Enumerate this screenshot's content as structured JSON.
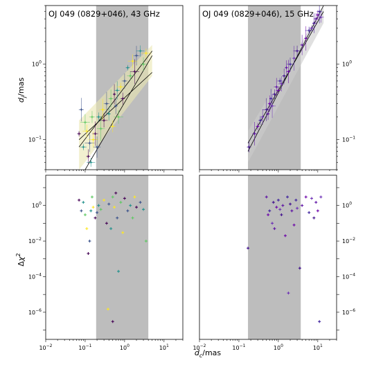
{
  "figure": {
    "xlabel": "d_c/mas",
    "ylabel_top": "d_j/mas",
    "ylabel_bottom": "Δχ²"
  },
  "chart_data": [
    {
      "type": "scatter",
      "panel": "top-left",
      "title": "OJ 049 (0829+046), 43 GHz",
      "xscale": "log",
      "yscale": "log",
      "xlim": [
        0.01,
        30
      ],
      "ylim": [
        0.04,
        6
      ],
      "shade_x": [
        0.19,
        4.0
      ],
      "yticks": [
        "10^-1",
        "10^0"
      ],
      "colormap": "viridis",
      "fit_lines": [
        {
          "x": [
            0.07,
            5
          ],
          "y": [
            0.08,
            1.5
          ]
        },
        {
          "x": [
            0.07,
            5
          ],
          "y": [
            0.1,
            0.78
          ]
        },
        {
          "x": [
            0.1,
            5
          ],
          "y": [
            0.04,
            1.3
          ]
        }
      ],
      "band": {
        "x": [
          0.07,
          5
        ],
        "ylow": [
          0.03,
          0.7
        ],
        "yhigh": [
          0.18,
          1.8
        ]
      },
      "series": [
        {
          "points": [
            [
              0.07,
              0.12
            ],
            [
              0.08,
              0.25
            ],
            [
              0.09,
              0.08
            ],
            [
              0.1,
              0.17
            ],
            [
              0.11,
              0.13
            ],
            [
              0.12,
              0.06
            ],
            [
              0.13,
              0.09
            ],
            [
              0.14,
              0.05
            ],
            [
              0.15,
              0.2
            ],
            [
              0.16,
              0.1
            ],
            [
              0.18,
              0.12
            ],
            [
              0.2,
              0.08
            ],
            [
              0.22,
              0.2
            ],
            [
              0.25,
              0.14
            ],
            [
              0.28,
              0.25
            ],
            [
              0.3,
              0.18
            ],
            [
              0.35,
              0.3
            ],
            [
              0.4,
              0.22
            ],
            [
              0.45,
              0.35
            ],
            [
              0.5,
              0.15
            ],
            [
              0.55,
              0.4
            ],
            [
              0.6,
              0.28
            ],
            [
              0.65,
              0.45
            ],
            [
              0.7,
              0.2
            ],
            [
              0.8,
              0.5
            ],
            [
              0.9,
              0.35
            ],
            [
              1.0,
              0.6
            ],
            [
              1.2,
              0.9
            ],
            [
              1.4,
              0.7
            ],
            [
              1.6,
              1.1
            ],
            [
              1.8,
              0.8
            ],
            [
              2.0,
              1.3
            ],
            [
              2.5,
              1.5
            ],
            [
              3.0,
              1.0
            ],
            [
              3.5,
              1.4
            ]
          ]
        }
      ]
    },
    {
      "type": "scatter",
      "panel": "top-right",
      "title": "OJ 049 (0829+046), 15 GHz",
      "xscale": "log",
      "yscale": "log",
      "xlim": [
        0.01,
        30
      ],
      "ylim": [
        0.04,
        6
      ],
      "shade_x": [
        0.17,
        3.7
      ],
      "yticks": [
        "10^-1",
        "10^0"
      ],
      "colormap": "plasma",
      "fit_lines": [
        {
          "x": [
            0.17,
            14
          ],
          "y": [
            0.07,
            6.5
          ]
        },
        {
          "x": [
            0.17,
            14
          ],
          "y": [
            0.09,
            5.0
          ]
        }
      ],
      "band": {
        "x": [
          0.17,
          14
        ],
        "ylow": [
          0.05,
          3.5
        ],
        "yhigh": [
          0.13,
          7.0
        ]
      },
      "series": [
        {
          "points": [
            [
              0.18,
              0.08
            ],
            [
              0.25,
              0.12
            ],
            [
              0.3,
              0.15
            ],
            [
              0.35,
              0.18
            ],
            [
              0.4,
              0.2
            ],
            [
              0.5,
              0.25
            ],
            [
              0.55,
              0.22
            ],
            [
              0.6,
              0.3
            ],
            [
              0.65,
              0.35
            ],
            [
              0.7,
              0.28
            ],
            [
              0.8,
              0.4
            ],
            [
              0.9,
              0.5
            ],
            [
              1.0,
              0.45
            ],
            [
              1.1,
              0.6
            ],
            [
              1.2,
              0.55
            ],
            [
              1.4,
              0.7
            ],
            [
              1.6,
              0.9
            ],
            [
              1.8,
              0.8
            ],
            [
              2.0,
              1.0
            ],
            [
              2.5,
              1.2
            ],
            [
              3.0,
              1.5
            ],
            [
              4.0,
              1.8
            ],
            [
              5.0,
              2.2
            ],
            [
              6.0,
              2.8
            ],
            [
              7.0,
              3.0
            ],
            [
              8.0,
              3.5
            ],
            [
              9.0,
              4.0
            ],
            [
              10.0,
              4.5
            ],
            [
              11.0,
              5.0
            ],
            [
              12.0,
              4.2
            ]
          ]
        }
      ]
    },
    {
      "type": "scatter",
      "panel": "bottom-left",
      "xscale": "log",
      "yscale": "log",
      "xlim": [
        0.01,
        30
      ],
      "ylim": [
        3e-08,
        50
      ],
      "shade_x": [
        0.19,
        4.0
      ],
      "xticks": [
        "10^-2",
        "10^-1",
        "10^0",
        "10^1"
      ],
      "yticks": [
        "10^-6",
        "10^-4",
        "10^-2",
        "10^0"
      ],
      "colormap": "viridis",
      "series": [
        {
          "points": [
            [
              0.07,
              2.0
            ],
            [
              0.08,
              0.5
            ],
            [
              0.09,
              1.5
            ],
            [
              0.1,
              0.3
            ],
            [
              0.11,
              0.05
            ],
            [
              0.12,
              0.002
            ],
            [
              0.13,
              0.01
            ],
            [
              0.14,
              0.5
            ],
            [
              0.15,
              3.0
            ],
            [
              0.16,
              0.8
            ],
            [
              0.18,
              0.2
            ],
            [
              0.2,
              0.4
            ],
            [
              0.22,
              1.0
            ],
            [
              0.25,
              0.6
            ],
            [
              0.3,
              2.0
            ],
            [
              0.35,
              0.1
            ],
            [
              0.4,
              1.2
            ],
            [
              0.45,
              0.05
            ],
            [
              0.5,
              3.0
            ],
            [
              0.55,
              0.8
            ],
            [
              0.6,
              5.0
            ],
            [
              0.65,
              0.2
            ],
            [
              0.7,
              0.0002
            ],
            [
              0.8,
              1.5
            ],
            [
              0.9,
              0.03
            ],
            [
              1.0,
              2.5
            ],
            [
              1.2,
              0.5
            ],
            [
              1.4,
              1.0
            ],
            [
              1.6,
              0.2
            ],
            [
              1.8,
              3.0
            ],
            [
              2.0,
              0.8
            ],
            [
              2.5,
              1.5
            ],
            [
              3.0,
              0.6
            ],
            [
              3.5,
              0.01
            ],
            [
              0.38,
              1.5e-06
            ],
            [
              0.5,
              3e-07
            ]
          ]
        }
      ]
    },
    {
      "type": "scatter",
      "panel": "bottom-right",
      "xscale": "log",
      "yscale": "log",
      "xlim": [
        0.01,
        30
      ],
      "ylim": [
        3e-08,
        50
      ],
      "shade_x": [
        0.17,
        3.7
      ],
      "xticks": [
        "10^-2",
        "10^-1",
        "10^0",
        "10^1"
      ],
      "yticks": [
        "10^-6",
        "10^-4",
        "10^-2",
        "10^0"
      ],
      "colormap": "plasma",
      "series": [
        {
          "points": [
            [
              0.17,
              0.004
            ],
            [
              0.5,
              3.0
            ],
            [
              0.55,
              0.3
            ],
            [
              0.6,
              0.5
            ],
            [
              0.7,
              0.1
            ],
            [
              0.75,
              1.5
            ],
            [
              0.8,
              0.05
            ],
            [
              0.9,
              0.8
            ],
            [
              1.0,
              2.0
            ],
            [
              1.1,
              0.6
            ],
            [
              1.2,
              0.3
            ],
            [
              1.3,
              1.0
            ],
            [
              1.5,
              0.02
            ],
            [
              1.7,
              3.0
            ],
            [
              1.8,
              1.2e-05
            ],
            [
              2.0,
              1.2
            ],
            [
              2.2,
              0.5
            ],
            [
              2.5,
              0.08
            ],
            [
              2.8,
              2.0
            ],
            [
              3.0,
              0.7
            ],
            [
              3.5,
              0.0003
            ],
            [
              4.0,
              1.0
            ],
            [
              5.0,
              3.0
            ],
            [
              6.0,
              0.4
            ],
            [
              7.0,
              2.5
            ],
            [
              8.0,
              0.2
            ],
            [
              9.0,
              1.5
            ],
            [
              10.0,
              0.5
            ],
            [
              11.0,
              3e-07
            ],
            [
              12.0,
              3.0
            ]
          ]
        }
      ]
    }
  ]
}
